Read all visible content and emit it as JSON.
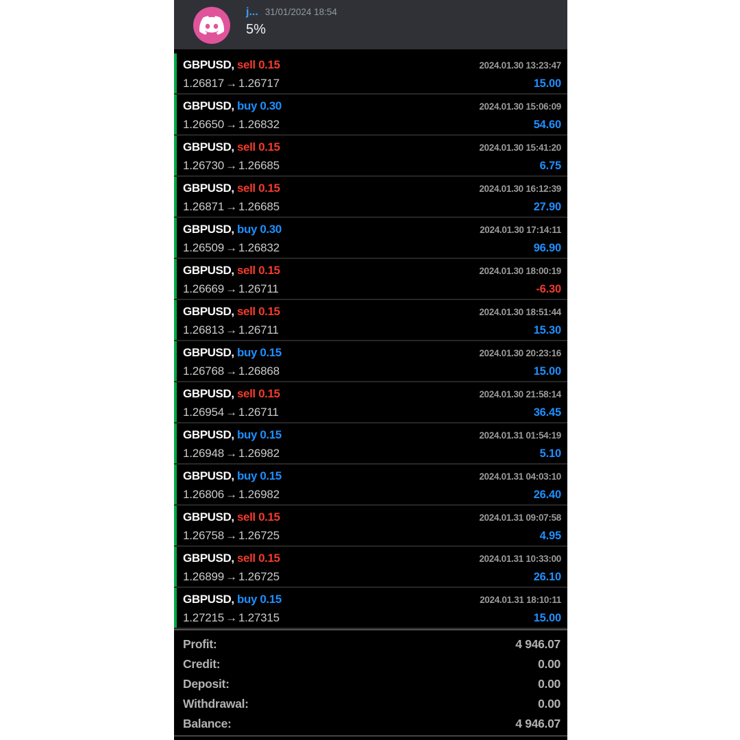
{
  "header": {
    "username": "j...",
    "timestamp": "31/01/2024 18:54",
    "message": "5%",
    "avatar_icon": "discord-logo-icon"
  },
  "trade_list": {
    "arrow": "→",
    "trades": [
      {
        "symbol": "GBPUSD,",
        "side": "sell",
        "volume": "0.15",
        "datetime": "2024.01.30 13:23:47",
        "open_price": "1.26817",
        "close_price": "1.26717",
        "profit": "15.00"
      },
      {
        "symbol": "GBPUSD,",
        "side": "buy",
        "volume": "0.30",
        "datetime": "2024.01.30 15:06:09",
        "open_price": "1.26650",
        "close_price": "1.26832",
        "profit": "54.60"
      },
      {
        "symbol": "GBPUSD,",
        "side": "sell",
        "volume": "0.15",
        "datetime": "2024.01.30 15:41:20",
        "open_price": "1.26730",
        "close_price": "1.26685",
        "profit": "6.75"
      },
      {
        "symbol": "GBPUSD,",
        "side": "sell",
        "volume": "0.15",
        "datetime": "2024.01.30 16:12:39",
        "open_price": "1.26871",
        "close_price": "1.26685",
        "profit": "27.90"
      },
      {
        "symbol": "GBPUSD,",
        "side": "buy",
        "volume": "0.30",
        "datetime": "2024.01.30 17:14:11",
        "open_price": "1.26509",
        "close_price": "1.26832",
        "profit": "96.90"
      },
      {
        "symbol": "GBPUSD,",
        "side": "sell",
        "volume": "0.15",
        "datetime": "2024.01.30 18:00:19",
        "open_price": "1.26669",
        "close_price": "1.26711",
        "profit": "-6.30"
      },
      {
        "symbol": "GBPUSD,",
        "side": "sell",
        "volume": "0.15",
        "datetime": "2024.01.30 18:51:44",
        "open_price": "1.26813",
        "close_price": "1.26711",
        "profit": "15.30"
      },
      {
        "symbol": "GBPUSD,",
        "side": "buy",
        "volume": "0.15",
        "datetime": "2024.01.30 20:23:16",
        "open_price": "1.26768",
        "close_price": "1.26868",
        "profit": "15.00"
      },
      {
        "symbol": "GBPUSD,",
        "side": "sell",
        "volume": "0.15",
        "datetime": "2024.01.30 21:58:14",
        "open_price": "1.26954",
        "close_price": "1.26711",
        "profit": "36.45"
      },
      {
        "symbol": "GBPUSD,",
        "side": "buy",
        "volume": "0.15",
        "datetime": "2024.01.31 01:54:19",
        "open_price": "1.26948",
        "close_price": "1.26982",
        "profit": "5.10"
      },
      {
        "symbol": "GBPUSD,",
        "side": "buy",
        "volume": "0.15",
        "datetime": "2024.01.31 04:03:10",
        "open_price": "1.26806",
        "close_price": "1.26982",
        "profit": "26.40"
      },
      {
        "symbol": "GBPUSD,",
        "side": "sell",
        "volume": "0.15",
        "datetime": "2024.01.31 09:07:58",
        "open_price": "1.26758",
        "close_price": "1.26725",
        "profit": "4.95"
      },
      {
        "symbol": "GBPUSD,",
        "side": "sell",
        "volume": "0.15",
        "datetime": "2024.01.31 10:33:00",
        "open_price": "1.26899",
        "close_price": "1.26725",
        "profit": "26.10"
      },
      {
        "symbol": "GBPUSD,",
        "side": "buy",
        "volume": "0.15",
        "datetime": "2024.01.31 18:10:11",
        "open_price": "1.27215",
        "close_price": "1.27315",
        "profit": "15.00"
      }
    ]
  },
  "summary": {
    "rows": [
      {
        "label": "Profit:",
        "value": "4 946.07"
      },
      {
        "label": "Credit:",
        "value": "0.00"
      },
      {
        "label": "Deposit:",
        "value": "0.00"
      },
      {
        "label": "Withdrawal:",
        "value": "0.00"
      },
      {
        "label": "Balance:",
        "value": "4 946.07"
      }
    ]
  },
  "background": {
    "pattern_icon": "bull-logo-icon"
  },
  "colors": {
    "accent_green": "#00AB44",
    "buy_blue": "#1E8FFF",
    "sell_red": "#F23B2C",
    "pattern_green": "#9CC79C",
    "avatar_pink": "#E0549B",
    "header_bg": "#2F3136",
    "panel_bg": "#000000"
  }
}
